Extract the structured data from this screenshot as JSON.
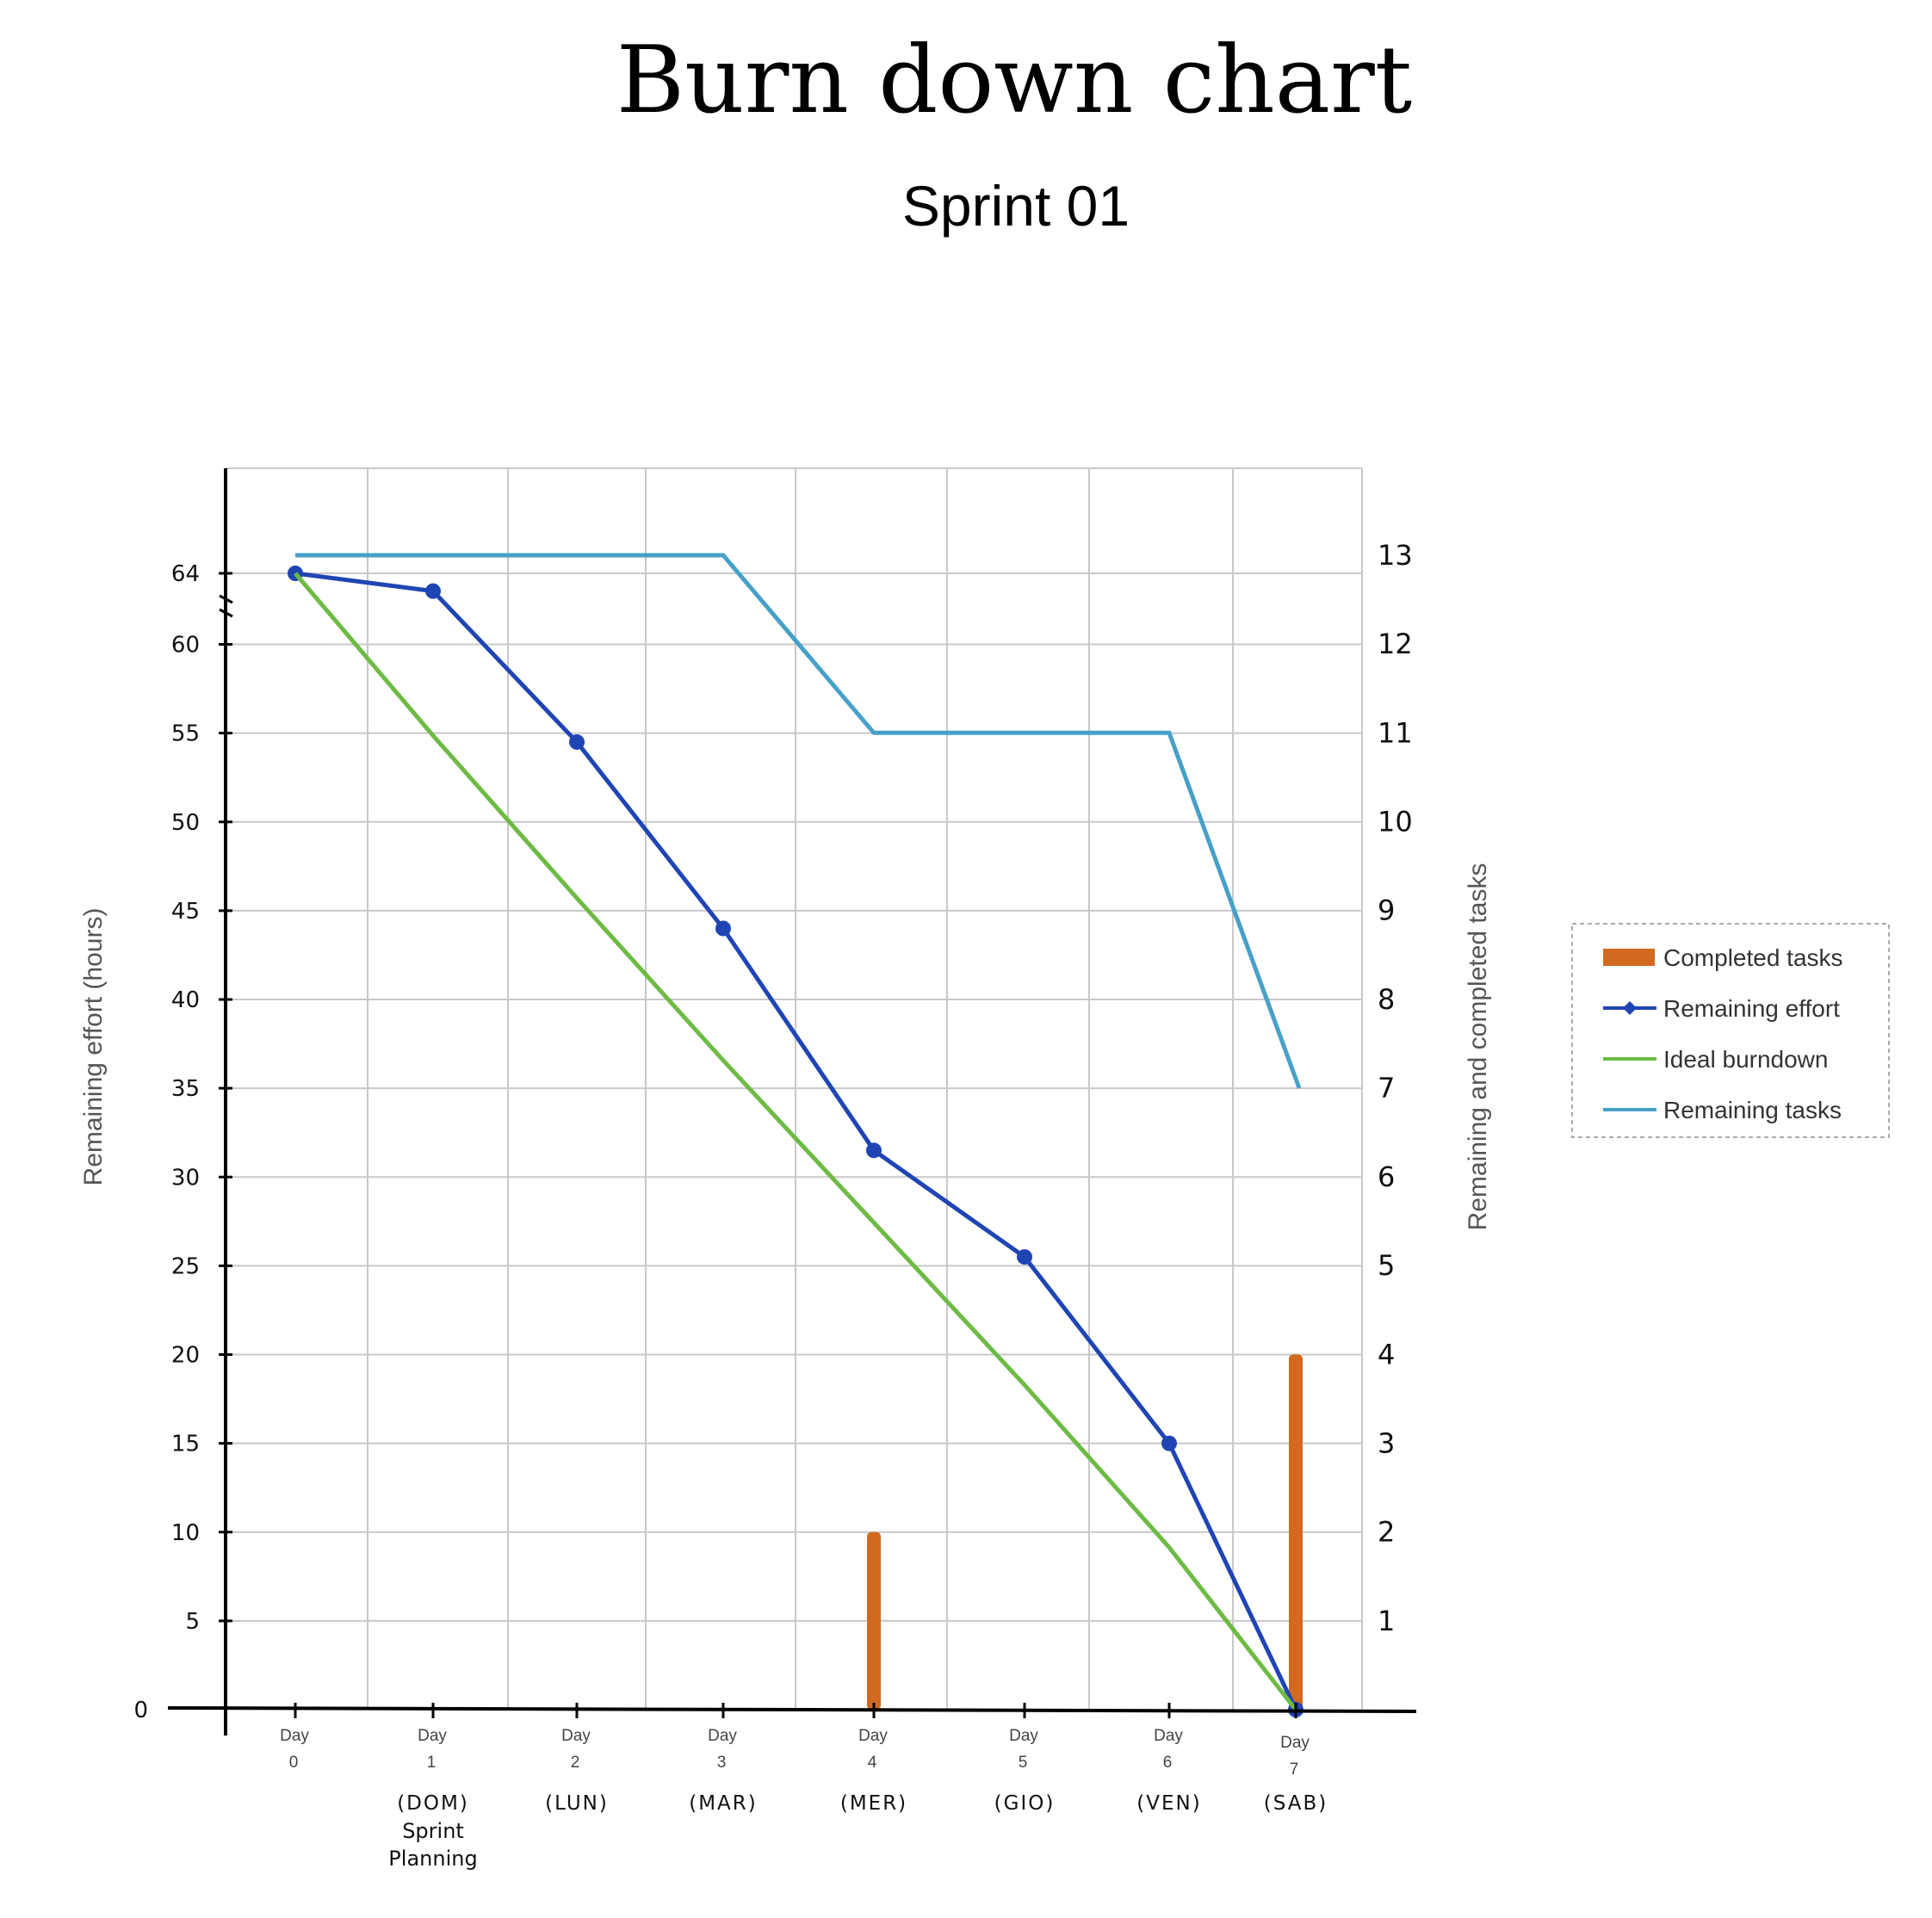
{
  "chart_data": {
    "type": "line",
    "title": "Burn down chart",
    "subtitle": "Sprint 01",
    "ylabel": "Remaining effort (hours)",
    "y2label": "Remaining and completed tasks",
    "x": [
      "Day 0",
      "Day 1",
      "Day 2",
      "Day 3",
      "Day 4",
      "Day 5",
      "Day 6",
      "Day 7"
    ],
    "x_tick_lines": [
      [
        "Day",
        "0"
      ],
      [
        "Day",
        "1"
      ],
      [
        "Day",
        "2"
      ],
      [
        "Day",
        "3"
      ],
      [
        "Day",
        "4"
      ],
      [
        "Day",
        "5"
      ],
      [
        "Day",
        "6"
      ],
      [
        "Day",
        "7"
      ]
    ],
    "day_names": [
      "(DOM)",
      "(LUN)",
      "(MAR)",
      "(MER)",
      "(GIO)",
      "(VEN)",
      "(SAB)"
    ],
    "day_note": [
      "Sprint",
      "Planning"
    ],
    "ylim": [
      0,
      64
    ],
    "y_ticks": [
      0,
      5,
      10,
      15,
      20,
      25,
      30,
      35,
      40,
      45,
      50,
      55,
      60,
      64
    ],
    "y2lim": [
      0,
      13
    ],
    "y2_ticks": [
      1,
      2,
      3,
      4,
      5,
      6,
      7,
      8,
      9,
      10,
      11,
      12,
      13
    ],
    "grid": true,
    "legend_position": "right",
    "series": [
      {
        "name": "Completed tasks",
        "type": "bar",
        "axis": "right",
        "color": "#D2691E",
        "values": [
          0,
          0,
          0,
          0,
          2,
          0,
          0,
          4
        ]
      },
      {
        "name": "Remaining effort",
        "type": "line",
        "axis": "left",
        "color": "#1F45B5",
        "marker": "circle",
        "values": [
          64,
          63,
          54.5,
          44,
          31.5,
          25.5,
          15,
          0
        ]
      },
      {
        "name": "Ideal burndown",
        "type": "line",
        "axis": "left",
        "color": "#6DBB45",
        "values": [
          64,
          54.86,
          45.71,
          36.57,
          27.43,
          18.29,
          9.14,
          0
        ]
      },
      {
        "name": "Remaining tasks",
        "type": "line",
        "axis": "right",
        "color": "#46A0C8",
        "values": [
          13,
          13,
          13,
          13,
          11,
          11,
          11,
          7
        ]
      }
    ]
  }
}
